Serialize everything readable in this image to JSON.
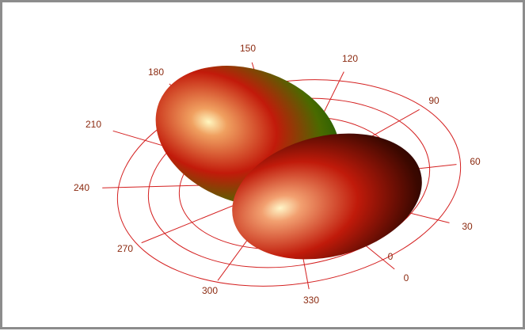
{
  "chart_data": {
    "type": "polar3d",
    "angle_ticks": [
      0,
      30,
      60,
      90,
      120,
      150,
      180,
      210,
      240,
      270,
      300,
      330
    ],
    "radius_ticks": [
      0
    ],
    "color": "#d42020"
  }
}
